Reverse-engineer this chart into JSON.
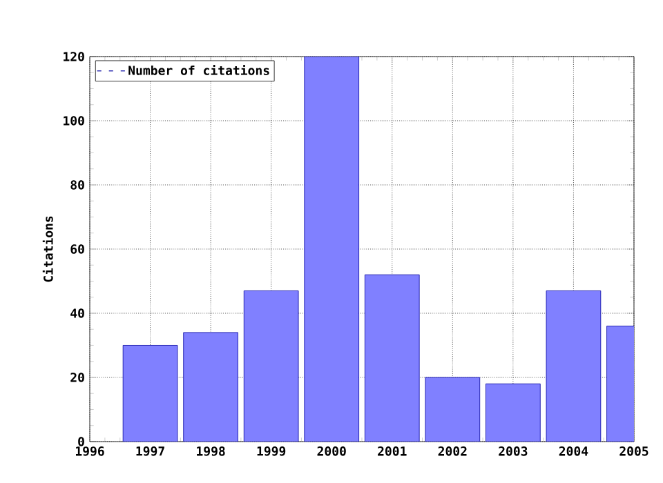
{
  "chart_data": {
    "type": "bar",
    "ylabel": "Citations",
    "x": [
      1997,
      1998,
      1999,
      2000,
      2001,
      2002,
      2003,
      2004,
      2005
    ],
    "series": [
      {
        "name": "Number of citations",
        "color": "#8080ff",
        "values": [
          30,
          34,
          47,
          120,
          52,
          20,
          18,
          47,
          36
        ]
      }
    ],
    "xlim": [
      1996,
      2005
    ],
    "xticks": [
      1996,
      1997,
      1998,
      1999,
      2000,
      2001,
      2002,
      2003,
      2004,
      2005
    ],
    "ylim": [
      0,
      120
    ],
    "yticks": [
      0,
      20,
      40,
      60,
      80,
      100,
      120
    ],
    "grid": true,
    "legend": "top left"
  }
}
